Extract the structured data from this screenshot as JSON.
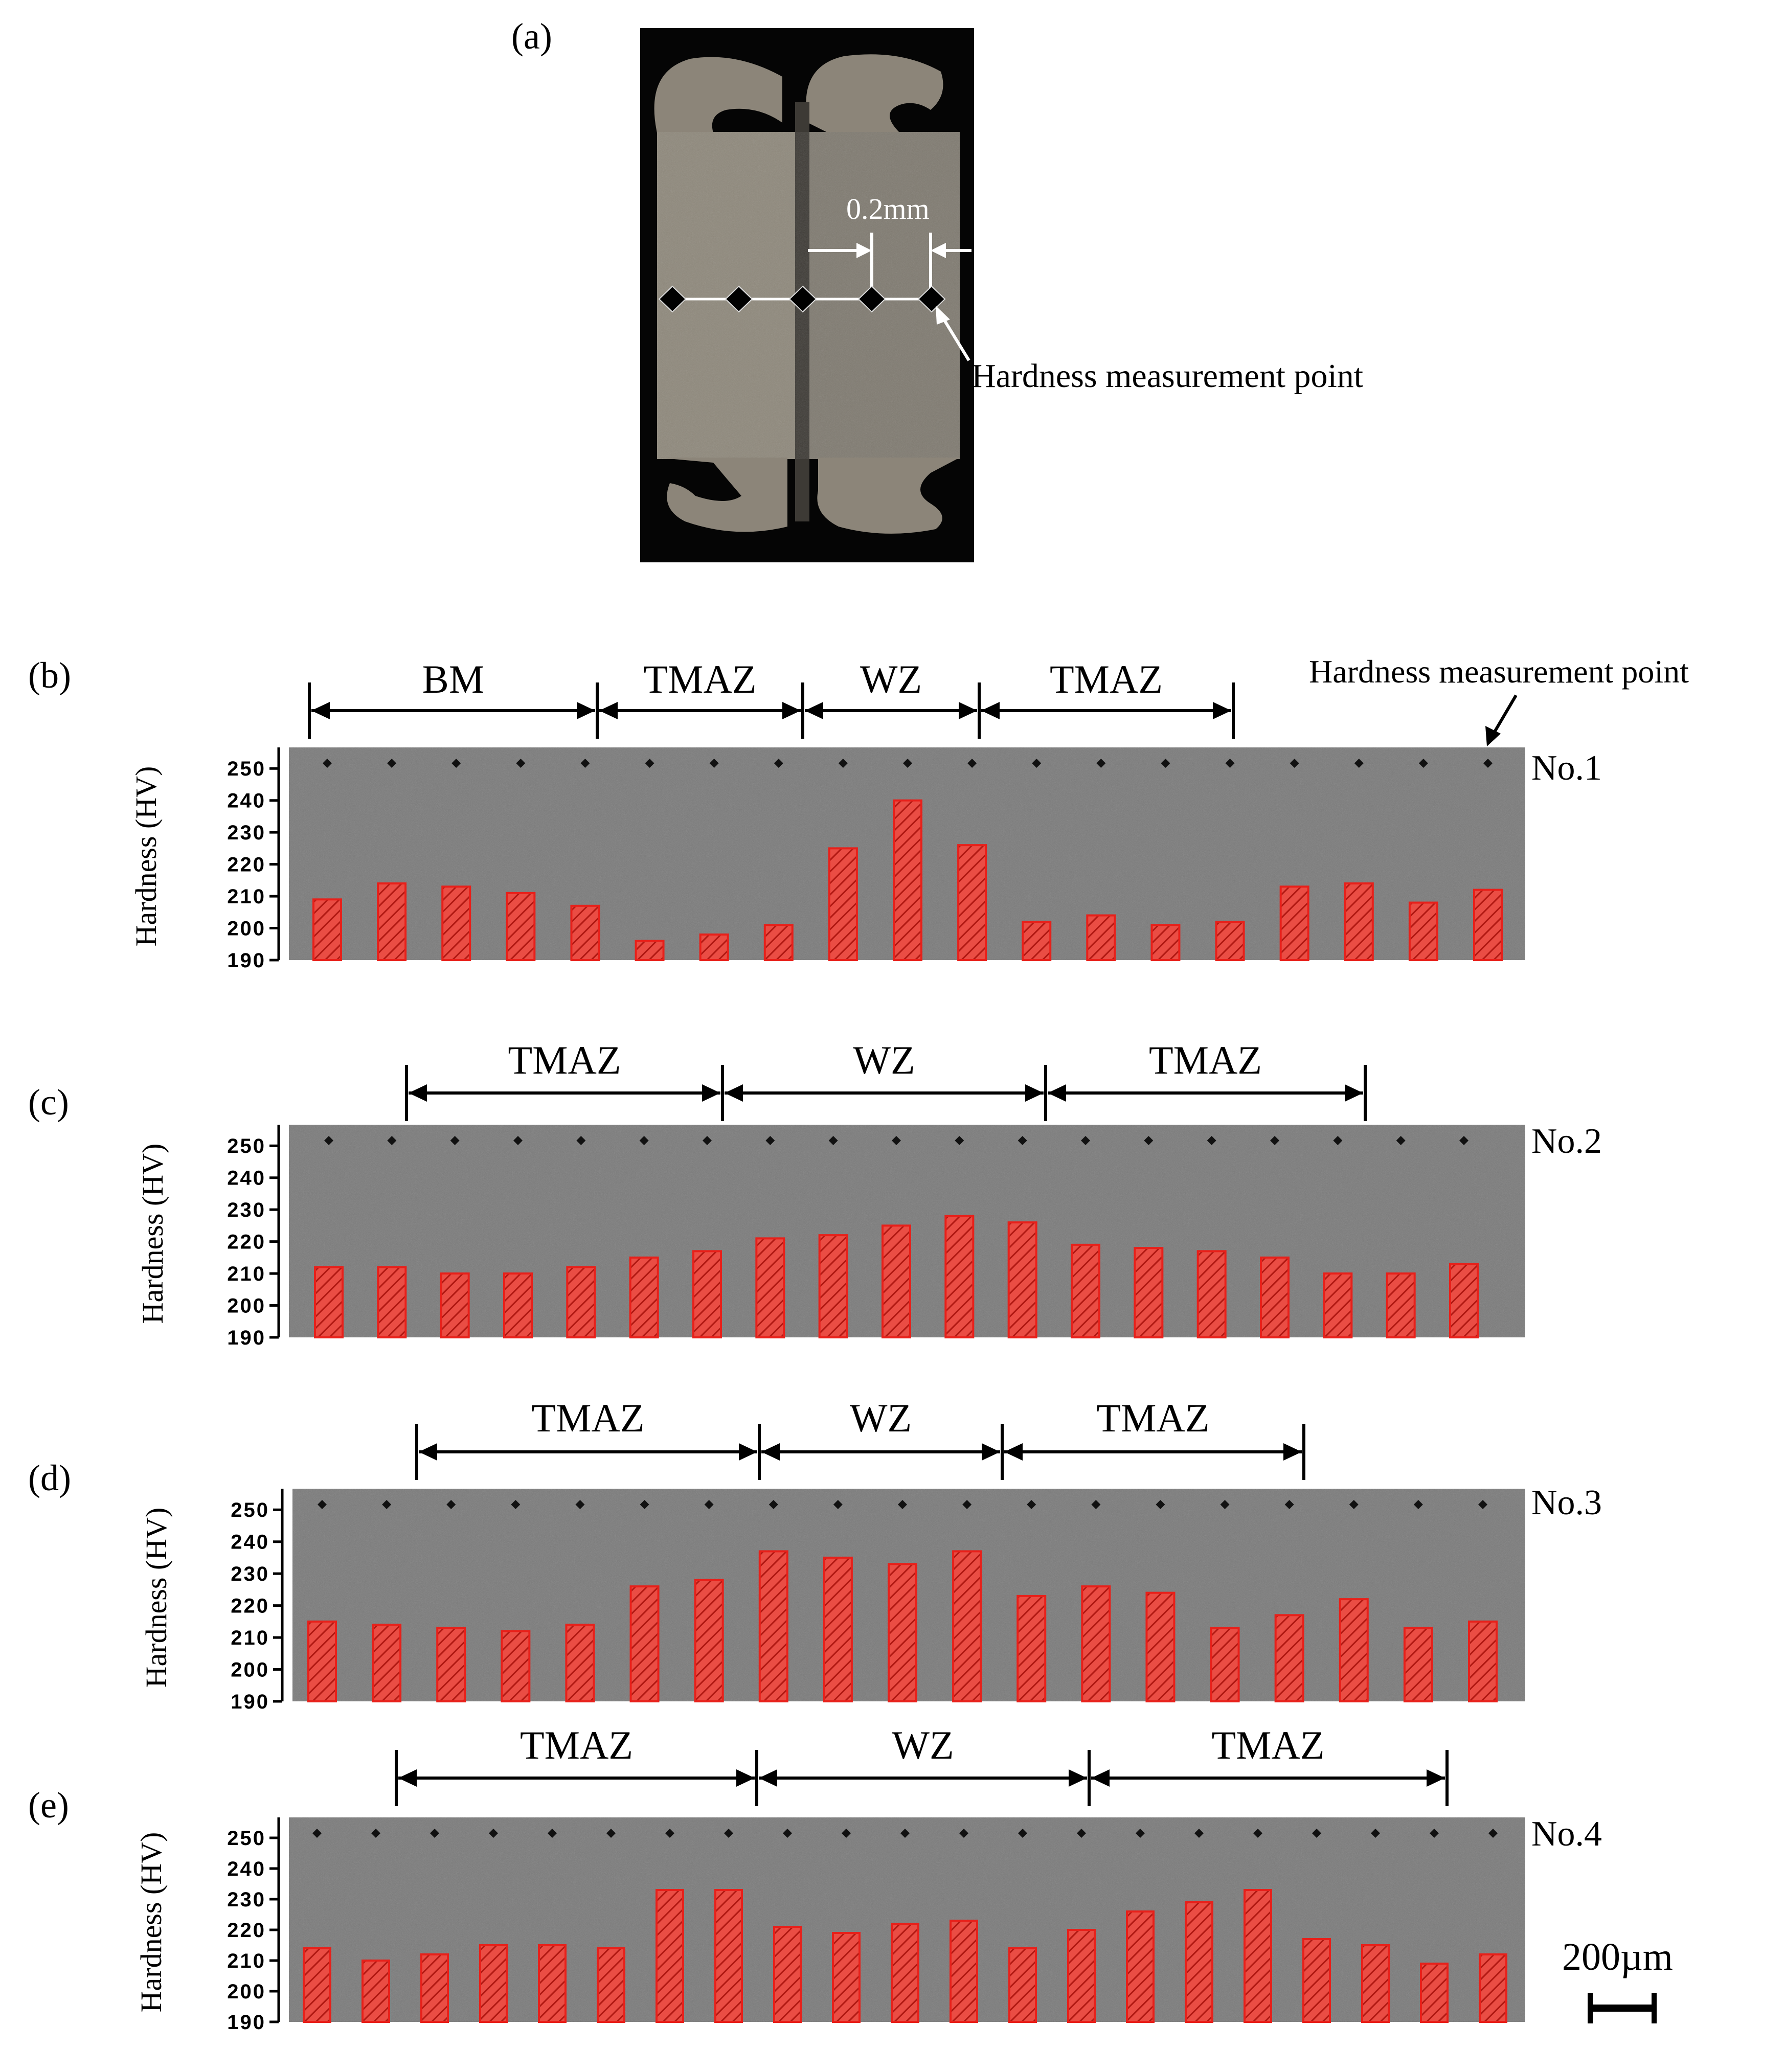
{
  "panel_a": {
    "letter": "(a)",
    "dimension_label": "0.2mm",
    "annotation": "Hardness measurement point"
  },
  "top_right_annotation": "Hardness measurement point",
  "scale_bar": {
    "label": "200µm"
  },
  "colors": {
    "bar": "#e8201a",
    "micrograph": "#7a7a7a",
    "specimen_background": "#050505",
    "specimen_metal": "#8a8578",
    "arrow": "#000000"
  },
  "chart_data": [
    {
      "type": "bar",
      "panel": "(b)",
      "sample": "No.1",
      "ylabel": "Hardness (HV)",
      "ylim": [
        190,
        255
      ],
      "yticks": [
        250,
        240,
        230,
        220,
        210,
        200,
        190
      ],
      "zones": [
        "BM",
        "TMAZ",
        "WZ",
        "TMAZ"
      ],
      "values": [
        209,
        214,
        213,
        211,
        207,
        196,
        198,
        201,
        225,
        240,
        226,
        202,
        204,
        201,
        202,
        213,
        214,
        208,
        212
      ]
    },
    {
      "type": "bar",
      "panel": "(c)",
      "sample": "No.2",
      "ylabel": "Hardness (HV)",
      "ylim": [
        190,
        255
      ],
      "yticks": [
        250,
        240,
        230,
        220,
        210,
        200,
        190
      ],
      "zones": [
        "TMAZ",
        "WZ",
        "TMAZ"
      ],
      "values": [
        212,
        212,
        210,
        210,
        212,
        215,
        217,
        221,
        222,
        225,
        228,
        226,
        219,
        218,
        217,
        215,
        210,
        210,
        213
      ]
    },
    {
      "type": "bar",
      "panel": "(d)",
      "sample": "No.3",
      "ylabel": "Hardness (HV)",
      "ylim": [
        190,
        255
      ],
      "yticks": [
        250,
        240,
        230,
        220,
        210,
        200,
        190
      ],
      "zones": [
        "TMAZ",
        "WZ",
        "TMAZ"
      ],
      "values": [
        215,
        214,
        213,
        212,
        214,
        226,
        228,
        237,
        235,
        233,
        237,
        223,
        226,
        224,
        213,
        217,
        222,
        213,
        215
      ]
    },
    {
      "type": "bar",
      "panel": "(e)",
      "sample": "No.4",
      "ylabel": "Hardness (HV)",
      "ylim": [
        190,
        255
      ],
      "yticks": [
        250,
        240,
        230,
        220,
        210,
        200,
        190
      ],
      "zones": [
        "TMAZ",
        "WZ",
        "TMAZ"
      ],
      "values": [
        214,
        210,
        212,
        215,
        215,
        214,
        233,
        233,
        221,
        219,
        222,
        223,
        214,
        220,
        226,
        229,
        233,
        217,
        215,
        209,
        212
      ]
    }
  ]
}
